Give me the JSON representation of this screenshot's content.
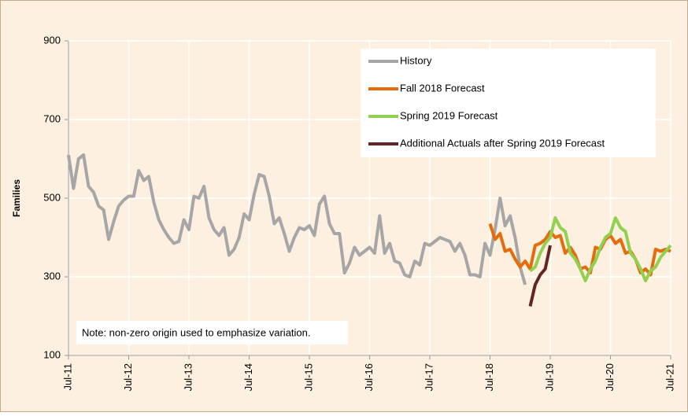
{
  "chart_data": {
    "type": "line",
    "y_label": "Families",
    "note": "Note: non-zero origin used to emphasize variation.",
    "xlim": [
      0,
      120
    ],
    "xticks": [
      {
        "value": 0,
        "label": "Jul-11"
      },
      {
        "value": 12,
        "label": "Jul-12"
      },
      {
        "value": 24,
        "label": "Jul-13"
      },
      {
        "value": 36,
        "label": "Jul-14"
      },
      {
        "value": 48,
        "label": "Jul-15"
      },
      {
        "value": 60,
        "label": "Jul-16"
      },
      {
        "value": 72,
        "label": "Jul-17"
      },
      {
        "value": 84,
        "label": "Jul-18"
      },
      {
        "value": 96,
        "label": "Jul-19"
      },
      {
        "value": 108,
        "label": "Jul-20"
      },
      {
        "value": 120,
        "label": "Jul-21"
      }
    ],
    "ylim": [
      100,
      900
    ],
    "yticks": [
      100,
      300,
      500,
      700,
      900
    ],
    "grid": true,
    "legend": "top-right",
    "series": [
      {
        "name": "History",
        "color": "#a6a6a6",
        "x": [
          0,
          1,
          2,
          3,
          4,
          5,
          6,
          7,
          8,
          9,
          10,
          11,
          12,
          13,
          14,
          15,
          16,
          17,
          18,
          19,
          20,
          21,
          22,
          23,
          24,
          25,
          26,
          27,
          28,
          29,
          30,
          31,
          32,
          33,
          34,
          35,
          36,
          37,
          38,
          39,
          40,
          41,
          42,
          43,
          44,
          45,
          46,
          47,
          48,
          49,
          50,
          51,
          52,
          53,
          54,
          55,
          56,
          57,
          58,
          59,
          60,
          61,
          62,
          63,
          64,
          65,
          66,
          67,
          68,
          69,
          70,
          71,
          72,
          73,
          74,
          75,
          76,
          77,
          78,
          79,
          80,
          81,
          82,
          83,
          84,
          85,
          86,
          87,
          88,
          89,
          90,
          91
        ],
        "values": [
          610,
          525,
          600,
          610,
          530,
          515,
          480,
          470,
          395,
          440,
          480,
          495,
          505,
          505,
          570,
          545,
          555,
          490,
          445,
          420,
          400,
          385,
          390,
          445,
          420,
          505,
          500,
          530,
          450,
          420,
          405,
          425,
          355,
          370,
          400,
          460,
          445,
          510,
          560,
          555,
          505,
          435,
          450,
          410,
          365,
          400,
          425,
          420,
          430,
          405,
          485,
          505,
          435,
          410,
          410,
          310,
          335,
          375,
          355,
          365,
          375,
          360,
          455,
          360,
          385,
          340,
          335,
          305,
          300,
          340,
          330,
          385,
          380,
          390,
          400,
          395,
          390,
          365,
          385,
          355,
          305,
          305,
          300,
          385,
          355,
          420,
          500,
          430,
          455,
          400,
          325,
          280
        ]
      },
      {
        "name": "Fall 2018 Forecast",
        "color": "#e46c0a",
        "x": [
          84,
          85,
          86,
          87,
          88,
          89,
          90,
          91,
          92,
          93,
          94,
          95,
          96,
          97,
          98,
          99,
          100,
          101,
          102,
          103,
          104,
          105,
          106,
          107,
          108,
          109,
          110,
          111,
          112,
          113,
          114,
          115,
          116,
          117,
          118,
          119,
          120
        ],
        "values": [
          435,
          395,
          410,
          365,
          370,
          345,
          325,
          340,
          320,
          380,
          385,
          395,
          415,
          400,
          405,
          360,
          375,
          355,
          320,
          325,
          310,
          375,
          370,
          395,
          405,
          385,
          395,
          360,
          365,
          345,
          310,
          320,
          305,
          370,
          365,
          370,
          365
        ]
      },
      {
        "name": "Spring 2019 Forecast",
        "color": "#92d050",
        "x": [
          92,
          93,
          94,
          95,
          96,
          97,
          98,
          99,
          100,
          101,
          102,
          103,
          104,
          105,
          106,
          107,
          108,
          109,
          110,
          111,
          112,
          113,
          114,
          115,
          116,
          117,
          118,
          119,
          120
        ],
        "values": [
          315,
          325,
          360,
          385,
          400,
          450,
          425,
          415,
          360,
          345,
          320,
          290,
          320,
          340,
          375,
          400,
          410,
          450,
          425,
          415,
          360,
          345,
          320,
          290,
          315,
          325,
          350,
          365,
          380
        ]
      },
      {
        "name": "Additional Actuals after Spring 2019 Forecast",
        "color": "#632523",
        "x": [
          92,
          93,
          94,
          95,
          96
        ],
        "values": [
          225,
          280,
          305,
          320,
          380
        ]
      }
    ]
  }
}
